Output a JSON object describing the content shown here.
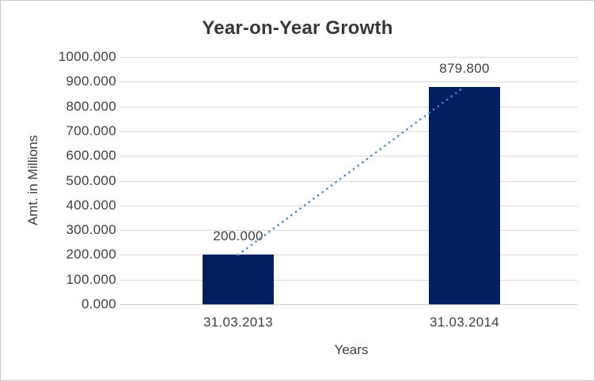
{
  "chart_data": {
    "type": "bar",
    "title": "Year-on-Year Growth",
    "xlabel": "Years",
    "ylabel": "Amt. in Millions",
    "categories": [
      "31.03.2013",
      "31.03.2014"
    ],
    "values": [
      200.0,
      879.8
    ],
    "data_labels": [
      "200.000",
      "879.800"
    ],
    "series": [
      {
        "name": "Amt. in Millions",
        "values": [
          200.0,
          879.8
        ]
      }
    ],
    "yticks": [
      "0.000",
      "100.000",
      "200.000",
      "300.000",
      "400.000",
      "500.000",
      "600.000",
      "700.000",
      "800.000",
      "900.000",
      "1000.000"
    ],
    "ylim": [
      0,
      1000
    ],
    "grid": true,
    "legend": "none",
    "bar_color": "#002060",
    "trendline": {
      "type": "linear",
      "style": "dotted",
      "color": "#4a85c8",
      "connects": [
        "31.03.2013",
        "31.03.2014"
      ]
    }
  }
}
